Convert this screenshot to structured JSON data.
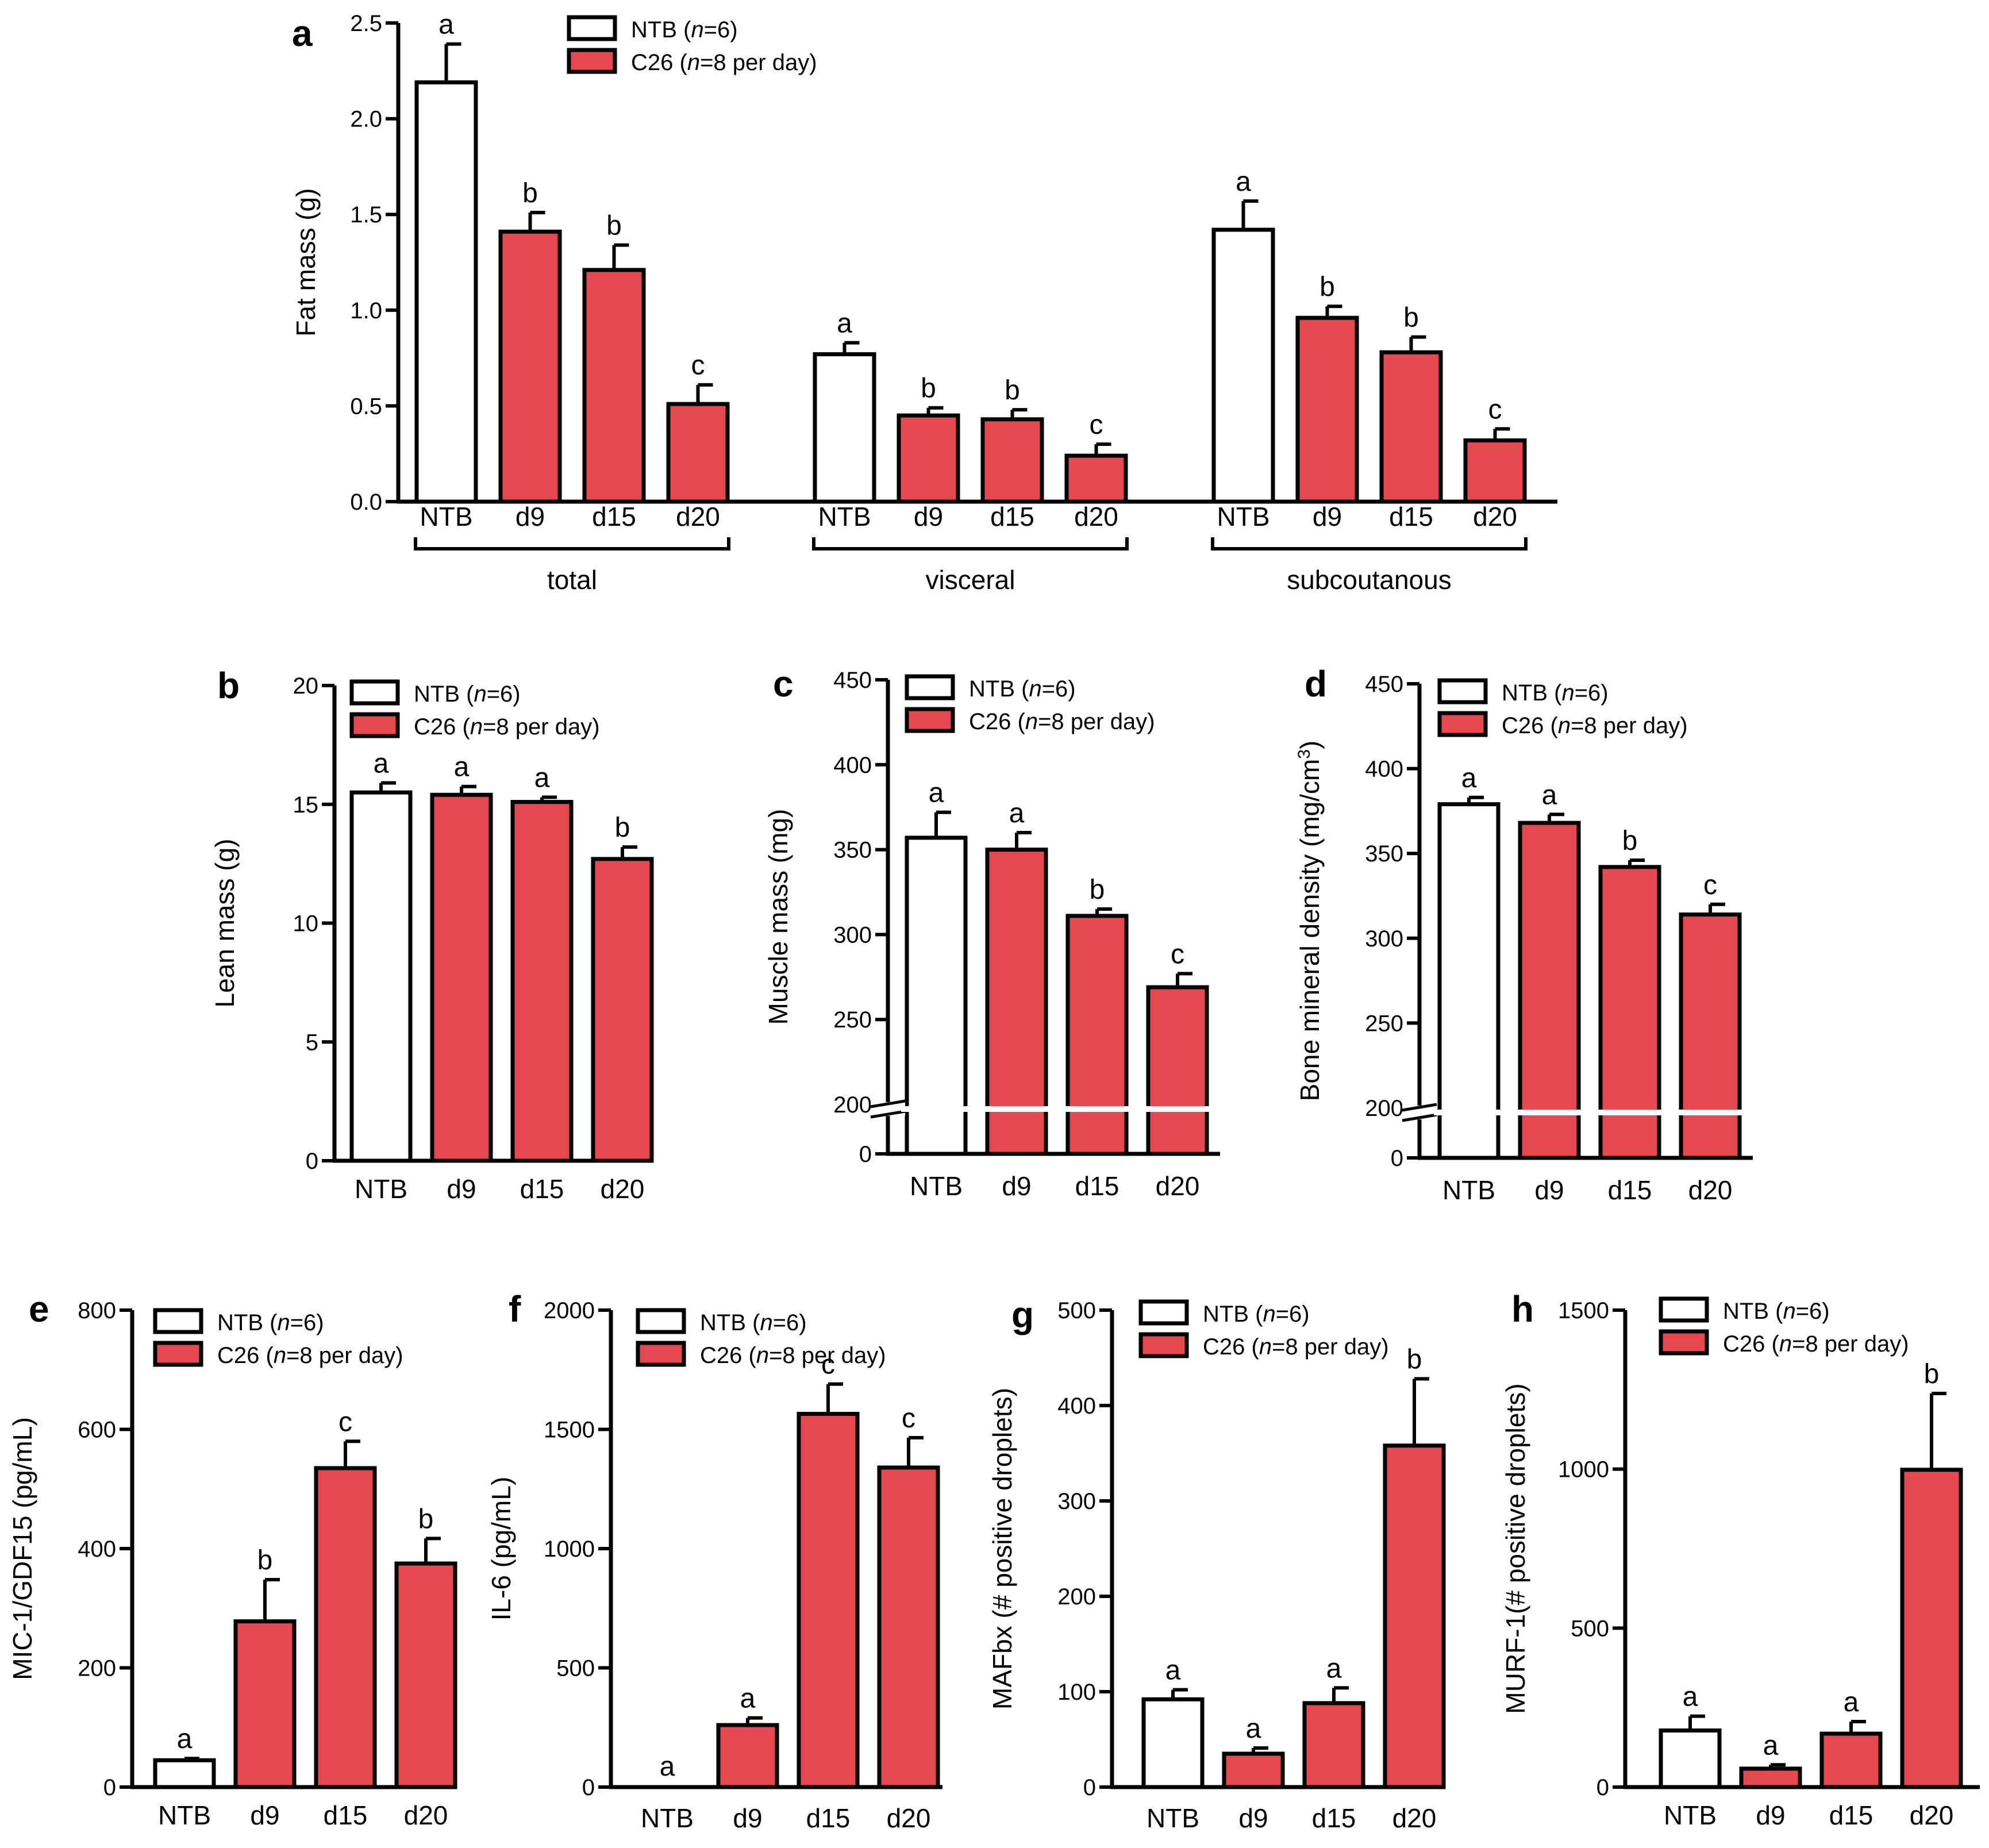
{
  "figure": {
    "description_colors": {
      "ntb": "#ffffff",
      "c26": "#e5484f",
      "stroke": "#000000"
    }
  },
  "legend": {
    "ntb_label": "NTB (",
    "ntb_n": "n",
    "ntb_rest": "=6)",
    "c26_label": "C26 (",
    "c26_n": "n",
    "c26_rest": "=8 per day)"
  },
  "chart_data": [
    {
      "panel": "a",
      "type": "bar",
      "ylabel": "Fat mass (g)",
      "ylim": [
        0,
        2.5
      ],
      "yticks": [
        "0.0",
        "0.5",
        "1.0",
        "1.5",
        "2.0",
        "2.5"
      ],
      "groups": [
        {
          "name": "total",
          "categories": [
            "NTB",
            "d9",
            "d15",
            "d20"
          ],
          "values": [
            2.19,
            1.41,
            1.21,
            0.51
          ],
          "errors": [
            0.2,
            0.1,
            0.13,
            0.1
          ],
          "letters": [
            "a",
            "b",
            "b",
            "c"
          ]
        },
        {
          "name": "visceral",
          "categories": [
            "NTB",
            "d9",
            "d15",
            "d20"
          ],
          "values": [
            0.77,
            0.45,
            0.43,
            0.24
          ],
          "errors": [
            0.06,
            0.04,
            0.05,
            0.06
          ],
          "letters": [
            "a",
            "b",
            "b",
            "c"
          ]
        },
        {
          "name": "subcoutanous",
          "categories": [
            "NTB",
            "d9",
            "d15",
            "d20"
          ],
          "values": [
            1.42,
            0.96,
            0.78,
            0.32
          ],
          "errors": [
            0.15,
            0.06,
            0.08,
            0.06
          ],
          "letters": [
            "a",
            "b",
            "b",
            "c"
          ]
        }
      ]
    },
    {
      "panel": "b",
      "type": "bar",
      "ylabel": "Lean mass (g)",
      "ylim": [
        0,
        20
      ],
      "yticks": [
        "0",
        "5",
        "10",
        "15",
        "20"
      ],
      "categories": [
        "NTB",
        "d9",
        "d15",
        "d20"
      ],
      "values": [
        15.5,
        15.4,
        15.1,
        12.7
      ],
      "errors": [
        0.4,
        0.35,
        0.2,
        0.5
      ],
      "letters": [
        "a",
        "a",
        "a",
        "b"
      ]
    },
    {
      "panel": "c",
      "type": "bar",
      "ylabel": "Muscle mass (mg)",
      "ylim": [
        0,
        450
      ],
      "axis_break": 200,
      "yticks": [
        "0",
        "200",
        "250",
        "300",
        "350",
        "400",
        "450"
      ],
      "categories": [
        "NTB",
        "d9",
        "d15",
        "d20"
      ],
      "values": [
        357,
        350,
        311,
        269
      ],
      "errors": [
        15,
        10,
        4,
        8
      ],
      "letters": [
        "a",
        "a",
        "b",
        "c"
      ]
    },
    {
      "panel": "d",
      "type": "bar",
      "ylabel": "Bone mineral density (mg/cm",
      "ylabel_sup": "3",
      "ylabel_end": ")",
      "ylim": [
        0,
        450
      ],
      "axis_break": 200,
      "yticks": [
        "0",
        "200",
        "250",
        "300",
        "350",
        "400",
        "450"
      ],
      "categories": [
        "NTB",
        "d9",
        "d15",
        "d20"
      ],
      "values": [
        379,
        368,
        342,
        314
      ],
      "errors": [
        4,
        5,
        4,
        6
      ],
      "letters": [
        "a",
        "a",
        "b",
        "c"
      ]
    },
    {
      "panel": "e",
      "type": "bar",
      "ylabel": "MIC-1/GDF15 (pg/mL)",
      "ylim": [
        0,
        800
      ],
      "yticks": [
        "0",
        "200",
        "400",
        "600",
        "800"
      ],
      "categories": [
        "NTB",
        "d9",
        "d15",
        "d20"
      ],
      "values": [
        45,
        278,
        535,
        375
      ],
      "errors": [
        3,
        70,
        45,
        42
      ],
      "letters": [
        "a",
        "b",
        "c",
        "b"
      ]
    },
    {
      "panel": "f",
      "type": "bar",
      "ylabel": "IL-6 (pg/mL)",
      "ylim": [
        0,
        2000
      ],
      "yticks": [
        "0",
        "500",
        "1000",
        "1500",
        "2000"
      ],
      "categories": [
        "NTB",
        "d9",
        "d15",
        "d20"
      ],
      "values": [
        0,
        260,
        1565,
        1340
      ],
      "errors": [
        0,
        30,
        125,
        125
      ],
      "letters": [
        "a",
        "a",
        "c",
        "c"
      ]
    },
    {
      "panel": "g",
      "type": "bar",
      "ylabel": "MAFbx (# positive droplets)",
      "ylim": [
        0,
        500
      ],
      "yticks": [
        "0",
        "100",
        "200",
        "300",
        "400",
        "500"
      ],
      "categories": [
        "NTB",
        "d9",
        "d15",
        "d20"
      ],
      "values": [
        92,
        35,
        88,
        358
      ],
      "errors": [
        10,
        6,
        16,
        70
      ],
      "letters": [
        "a",
        "a",
        "a",
        "b"
      ]
    },
    {
      "panel": "h",
      "type": "bar",
      "ylabel": "MURF-1(# positive droplets)",
      "ylim": [
        0,
        1500
      ],
      "yticks": [
        "0",
        "500",
        "1000",
        "1500"
      ],
      "categories": [
        "NTB",
        "d9",
        "d15",
        "d20"
      ],
      "values": [
        178,
        58,
        168,
        998
      ],
      "errors": [
        45,
        12,
        38,
        240
      ],
      "letters": [
        "a",
        "a",
        "a",
        "b"
      ]
    }
  ]
}
